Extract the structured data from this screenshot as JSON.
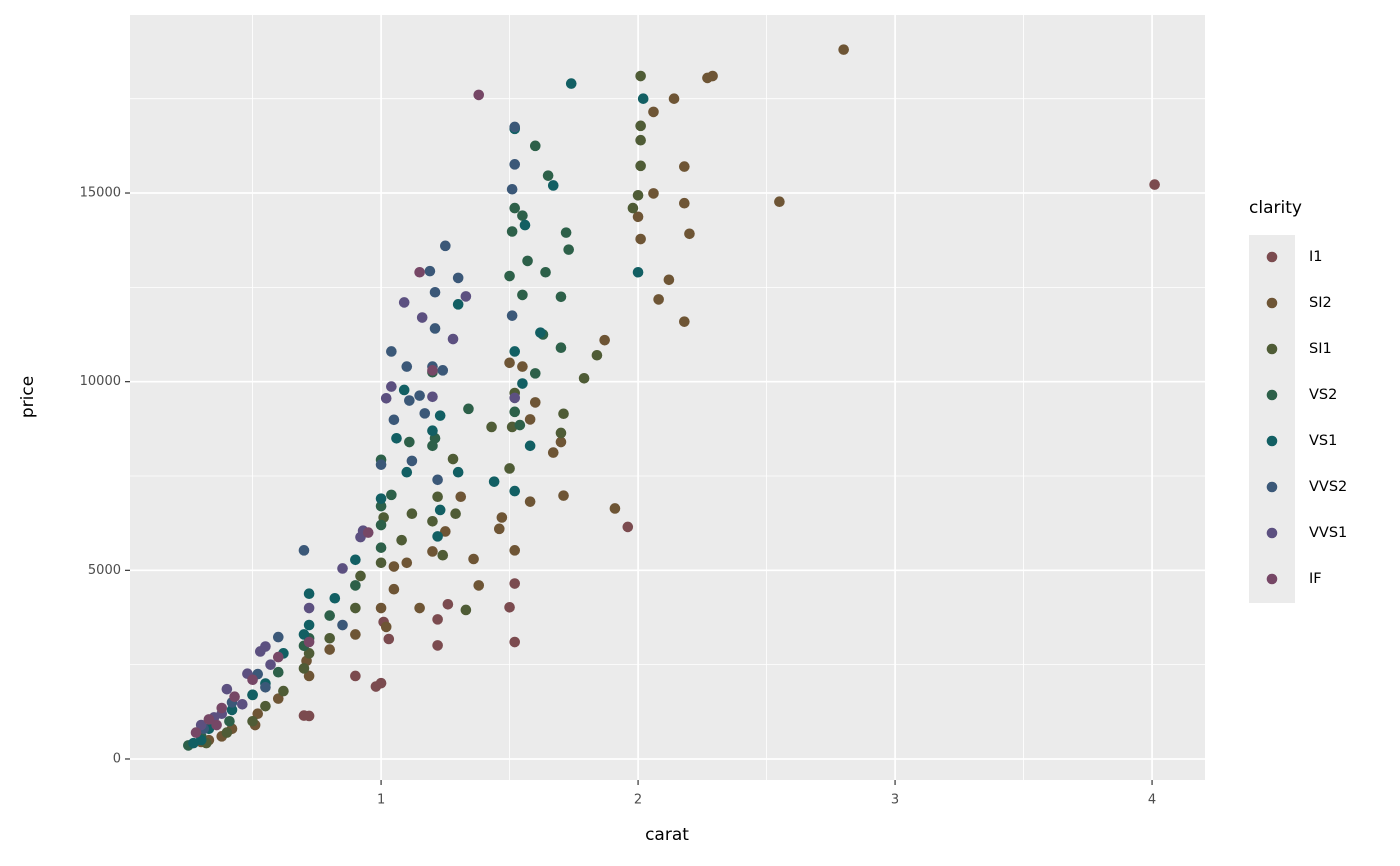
{
  "chart_data": {
    "type": "scatter",
    "x_label": "carat",
    "y_label": "price",
    "legend_title": "clarity",
    "xlim": [
      0.023,
      4.206
    ],
    "ylim": [
      -557,
      19718
    ],
    "xticks": [
      1,
      2,
      3,
      4
    ],
    "yticks": [
      0,
      5000,
      10000,
      15000
    ],
    "grid": true,
    "legend_position": "right",
    "series": [
      {
        "name": "I1",
        "color": "#7B4B4F",
        "x": [
          4.01,
          1.96,
          1.52,
          1.52,
          1.5,
          1.22,
          0.98,
          1.0,
          0.72,
          0.7,
          1.22,
          1.01,
          1.03,
          1.26,
          0.9
        ],
        "y": [
          15223,
          6150,
          3100,
          4650,
          4020,
          3010,
          1920,
          2010,
          1140,
          1150,
          3700,
          3630,
          3180,
          4100,
          2200
        ]
      },
      {
        "name": "SI2",
        "color": "#6E5535",
        "x": [
          2.8,
          2.29,
          2.27,
          2.14,
          2.06,
          2.55,
          2.18,
          2.18,
          2.2,
          2.12,
          2.08,
          2.18,
          2.06,
          2.01,
          2.0,
          1.87,
          1.91,
          1.71,
          1.67,
          1.7,
          1.58,
          1.6,
          1.55,
          1.5,
          1.47,
          1.46,
          1.52,
          1.38,
          1.36,
          1.25,
          1.2,
          1.1,
          1.05,
          1.0,
          1.02,
          0.9,
          0.8,
          0.71,
          0.72,
          0.6,
          0.52,
          0.51,
          0.42,
          0.38,
          0.33,
          0.3,
          1.58,
          1.05,
          1.15,
          1.31
        ],
        "y": [
          18800,
          18100,
          18050,
          17500,
          17150,
          14770,
          15700,
          14730,
          13920,
          12700,
          12180,
          11590,
          14990,
          13780,
          14370,
          11100,
          6640,
          6980,
          8120,
          8400,
          9000,
          9450,
          10400,
          10500,
          6400,
          6100,
          5530,
          4600,
          5300,
          6030,
          5500,
          5200,
          4500,
          4000,
          3500,
          3300,
          2900,
          2600,
          2200,
          1600,
          1200,
          900,
          800,
          600,
          500,
          450,
          6820,
          5100,
          4000,
          6950
        ]
      },
      {
        "name": "SI1",
        "color": "#4F5C36",
        "x": [
          2.01,
          2.01,
          2.01,
          2.01,
          2.0,
          1.98,
          1.79,
          1.84,
          1.71,
          1.7,
          1.52,
          1.51,
          1.5,
          1.43,
          1.28,
          1.29,
          1.22,
          1.2,
          1.12,
          1.08,
          1.0,
          1.01,
          0.92,
          0.9,
          0.8,
          0.72,
          0.7,
          0.62,
          0.55,
          0.5,
          0.4,
          0.32,
          1.33,
          1.24
        ],
        "y": [
          18100,
          16780,
          16400,
          15720,
          14940,
          14600,
          10090,
          10700,
          9150,
          8640,
          9700,
          8800,
          7700,
          8800,
          7950,
          6500,
          6950,
          6300,
          6500,
          5800,
          5200,
          6400,
          4850,
          4000,
          3200,
          2800,
          2400,
          1800,
          1400,
          1000,
          700,
          420,
          3950,
          5400
        ]
      },
      {
        "name": "VS2",
        "color": "#2D6049",
        "x": [
          1.6,
          1.52,
          1.55,
          1.51,
          1.65,
          1.72,
          1.73,
          1.7,
          1.57,
          1.64,
          1.55,
          1.63,
          1.7,
          1.6,
          1.52,
          1.54,
          1.34,
          1.21,
          1.2,
          1.11,
          1.0,
          1.04,
          1.0,
          1.0,
          1.0,
          0.9,
          0.8,
          0.72,
          0.7,
          0.6,
          0.5,
          0.41,
          0.3,
          0.25,
          1.2,
          1.5
        ],
        "y": [
          16250,
          14600,
          14400,
          13980,
          15460,
          13950,
          13500,
          12250,
          13200,
          12900,
          12300,
          11250,
          10900,
          10220,
          9200,
          8850,
          9280,
          8500,
          8300,
          8400,
          7930,
          7000,
          6700,
          6200,
          5600,
          4600,
          3800,
          3200,
          3000,
          2300,
          1700,
          1000,
          600,
          360,
          10250,
          12800
        ]
      },
      {
        "name": "VS1",
        "color": "#125F63",
        "x": [
          1.74,
          2.02,
          2.0,
          1.52,
          1.67,
          1.56,
          1.52,
          1.55,
          1.58,
          1.62,
          1.44,
          1.52,
          1.3,
          1.23,
          1.2,
          1.09,
          1.06,
          1.1,
          1.0,
          0.9,
          0.82,
          0.72,
          0.72,
          0.7,
          0.62,
          0.55,
          0.5,
          0.42,
          0.33,
          0.3,
          0.27,
          1.3,
          1.22,
          1.23
        ],
        "y": [
          17900,
          17500,
          12900,
          16700,
          15200,
          14150,
          10800,
          9950,
          8300,
          11300,
          7350,
          7100,
          7600,
          9100,
          8700,
          9780,
          8500,
          7600,
          6900,
          5280,
          4260,
          4380,
          3550,
          3300,
          2800,
          2000,
          1700,
          1300,
          800,
          500,
          420,
          12050,
          5900,
          6600
        ]
      },
      {
        "name": "VVS2",
        "color": "#3B5878",
        "x": [
          1.52,
          1.52,
          1.51,
          1.51,
          1.25,
          1.3,
          1.19,
          1.21,
          1.21,
          1.1,
          1.04,
          1.24,
          1.2,
          1.11,
          1.17,
          1.05,
          1.15,
          1.0,
          1.22,
          0.7,
          0.85,
          0.6,
          0.52,
          0.42,
          0.31,
          0.55,
          1.12
        ],
        "y": [
          16750,
          15760,
          15100,
          11750,
          13600,
          12750,
          12930,
          12370,
          11410,
          10400,
          10800,
          10300,
          10400,
          9500,
          9160,
          8990,
          9630,
          7800,
          7400,
          5530,
          3550,
          3230,
          2250,
          1500,
          800,
          1900,
          7900
        ]
      },
      {
        "name": "VVS1",
        "color": "#5C5080",
        "x": [
          1.04,
          1.02,
          1.2,
          1.16,
          1.09,
          1.33,
          1.28,
          1.52,
          0.93,
          0.92,
          0.85,
          0.72,
          0.53,
          0.55,
          0.48,
          0.4,
          0.35,
          0.3,
          0.38,
          0.46,
          0.57
        ],
        "y": [
          9870,
          9560,
          9600,
          11700,
          12100,
          12260,
          11130,
          9570,
          6050,
          5880,
          5050,
          4000,
          2850,
          2980,
          2260,
          1850,
          1100,
          900,
          1200,
          1450,
          2500
        ]
      },
      {
        "name": "IF",
        "color": "#764766",
        "x": [
          1.38,
          1.15,
          1.2,
          0.95,
          0.72,
          0.6,
          0.5,
          0.43,
          0.38,
          0.33,
          0.28,
          0.36
        ],
        "y": [
          17600,
          12900,
          10300,
          6000,
          3100,
          2700,
          2100,
          1650,
          1350,
          1050,
          700,
          900
        ]
      }
    ]
  }
}
